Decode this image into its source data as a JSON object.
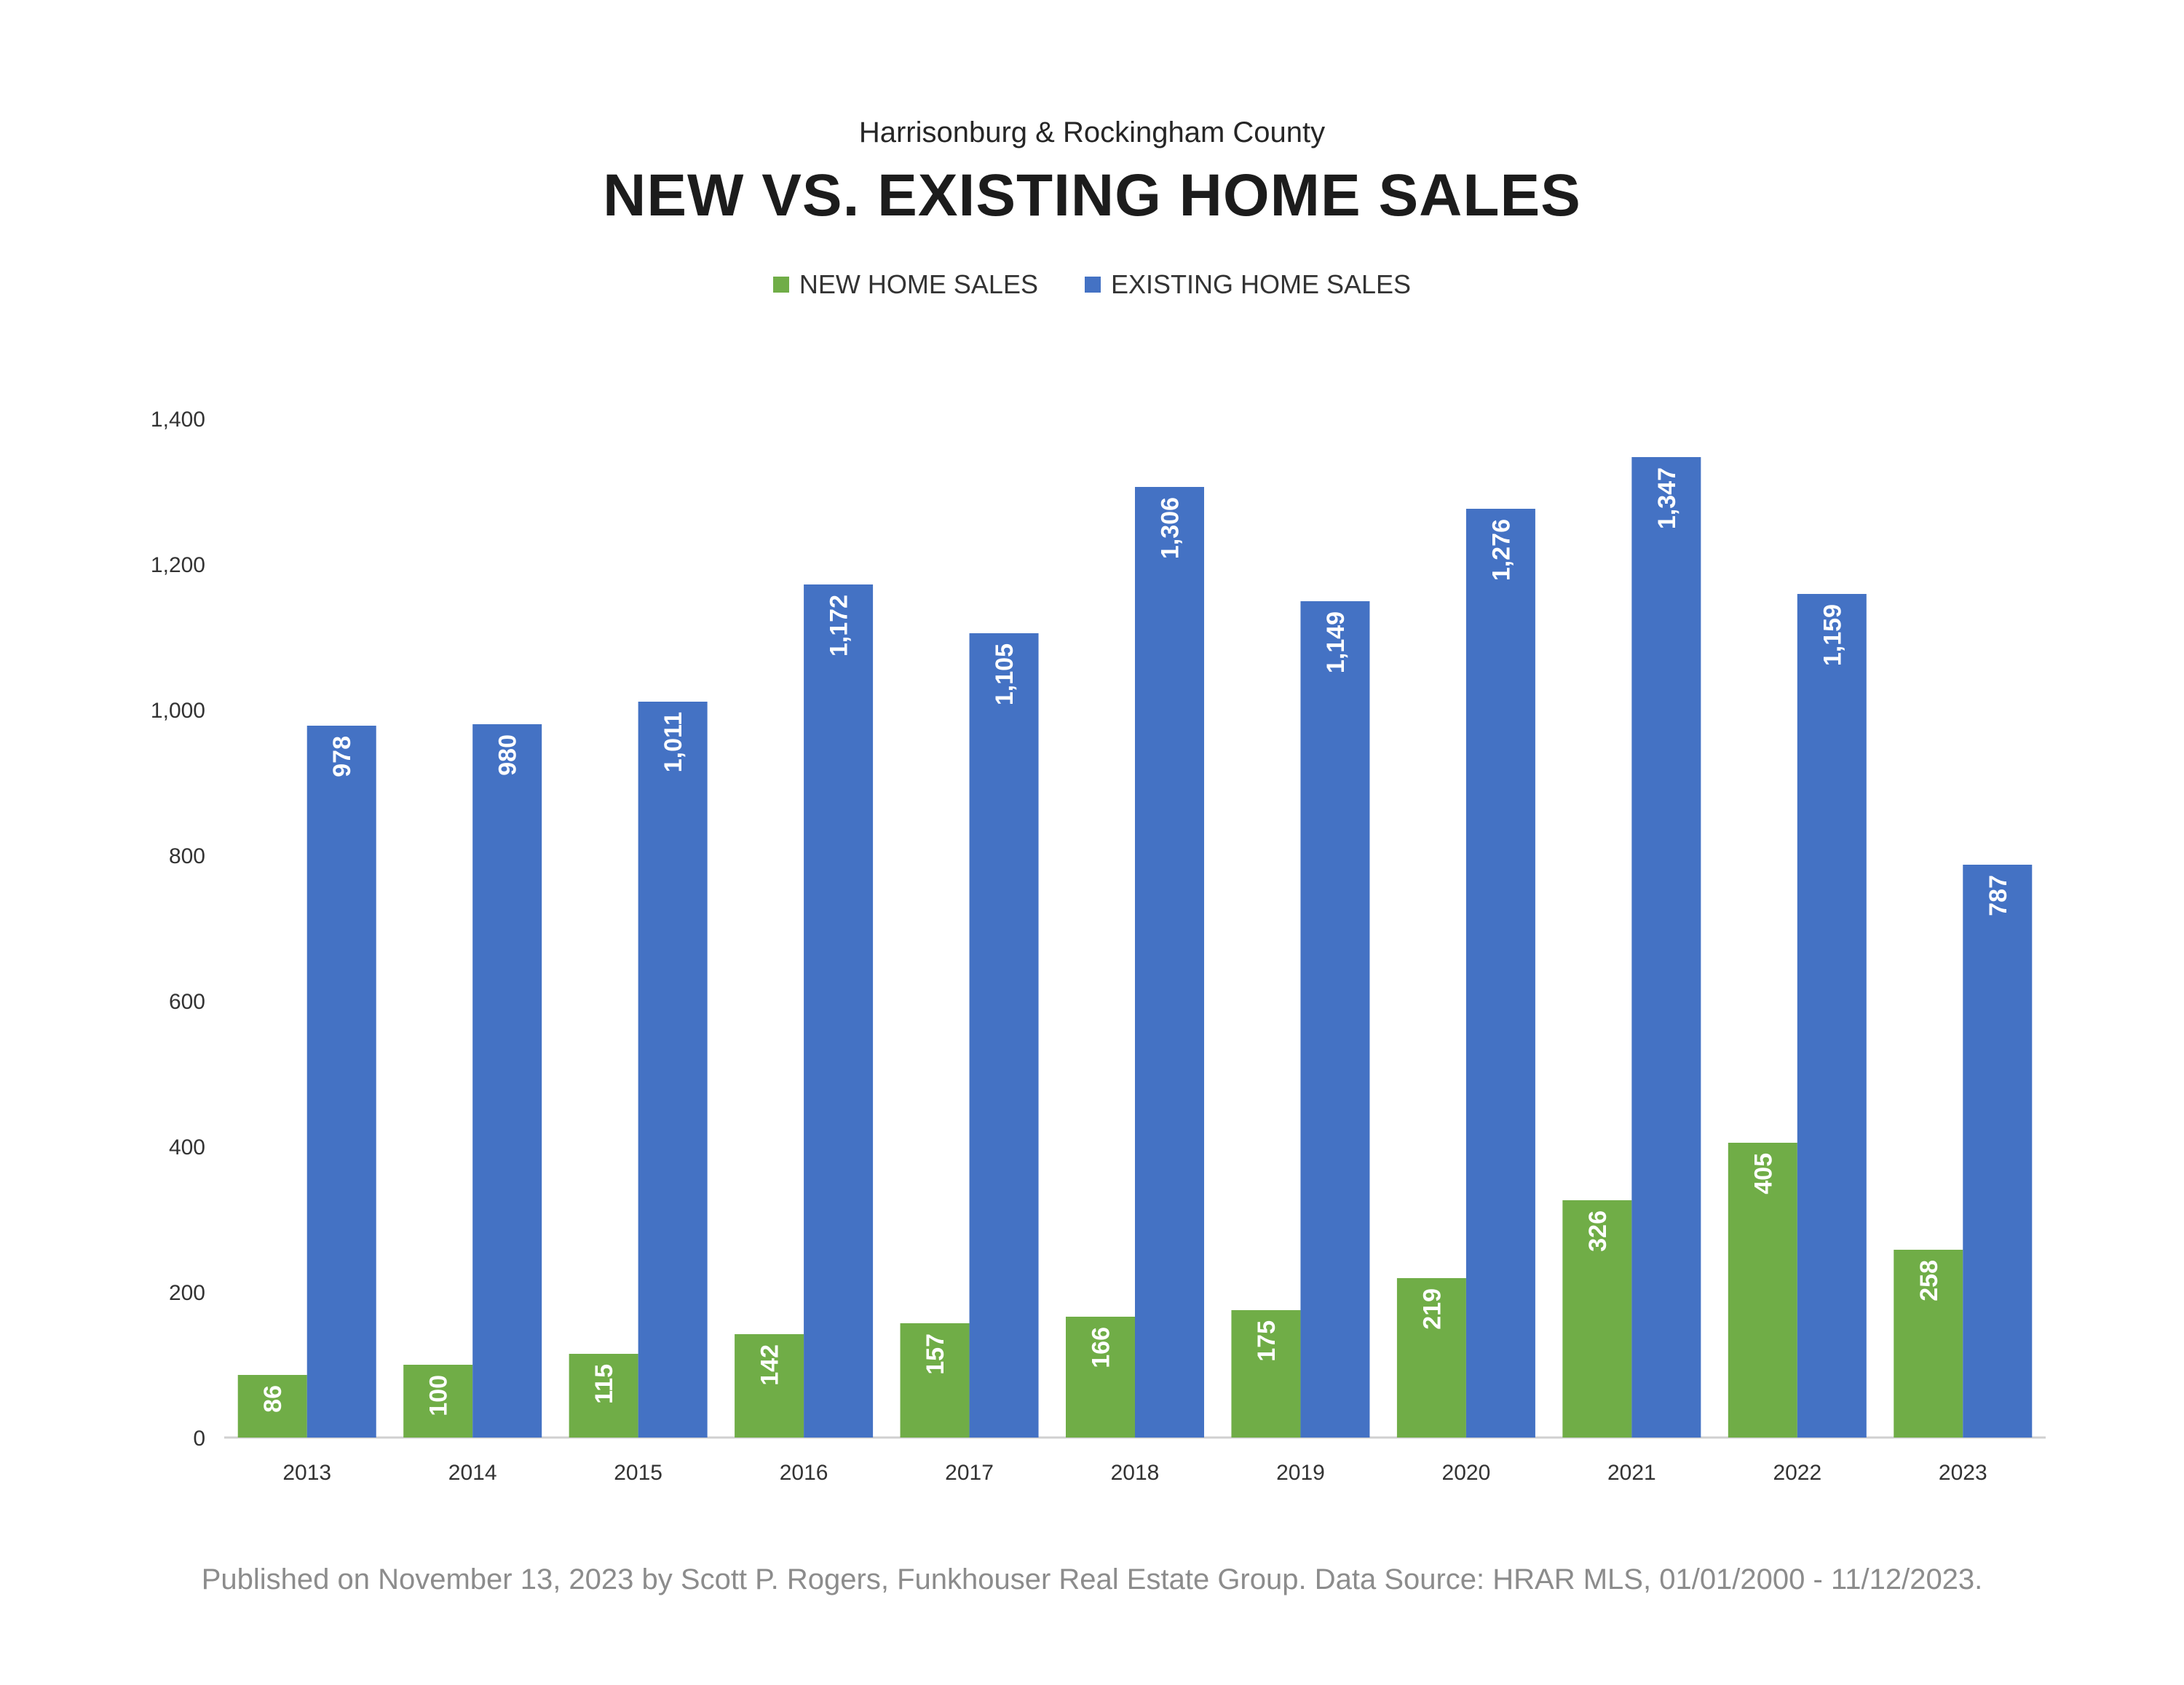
{
  "header": {
    "subtitle": "Harrisonburg & Rockingham County",
    "title": "NEW VS. EXISTING HOME SALES"
  },
  "footer": {
    "text": "Published on November 13, 2023 by Scott P. Rogers, Funkhouser Real Estate Group. Data Source: HRAR MLS, 01/01/2000 - 11/12/2023."
  },
  "colors": {
    "new": "#70ad47",
    "existing": "#4472c4"
  },
  "chart_data": {
    "type": "bar",
    "title": "NEW VS. EXISTING HOME SALES",
    "subtitle": "Harrisonburg & Rockingham County",
    "xlabel": "",
    "ylabel": "",
    "categories": [
      "2013",
      "2014",
      "2015",
      "2016",
      "2017",
      "2018",
      "2019",
      "2020",
      "2021",
      "2022",
      "2023"
    ],
    "series": [
      {
        "name": "NEW HOME SALES",
        "color": "#70ad47",
        "values": [
          86,
          100,
          115,
          142,
          157,
          166,
          175,
          219,
          326,
          405,
          258
        ],
        "labels": [
          "86",
          "100",
          "115",
          "142",
          "157",
          "166",
          "175",
          "219",
          "326",
          "405",
          "258"
        ]
      },
      {
        "name": "EXISTING HOME SALES",
        "color": "#4472c4",
        "values": [
          978,
          980,
          1011,
          1172,
          1105,
          1306,
          1149,
          1276,
          1347,
          1159,
          787
        ],
        "labels": [
          "978",
          "980",
          "1,011",
          "1,172",
          "1,105",
          "1,306",
          "1,149",
          "1,276",
          "1,347",
          "1,159",
          "787"
        ]
      }
    ],
    "ylim": [
      0,
      1400
    ],
    "yticks": [
      0,
      200,
      400,
      600,
      800,
      1000,
      1200,
      1400
    ],
    "ytick_labels": [
      "0",
      "200",
      "400",
      "600",
      "800",
      "1,000",
      "1,200",
      "1,400"
    ],
    "grid": false,
    "legend": "top-center"
  }
}
